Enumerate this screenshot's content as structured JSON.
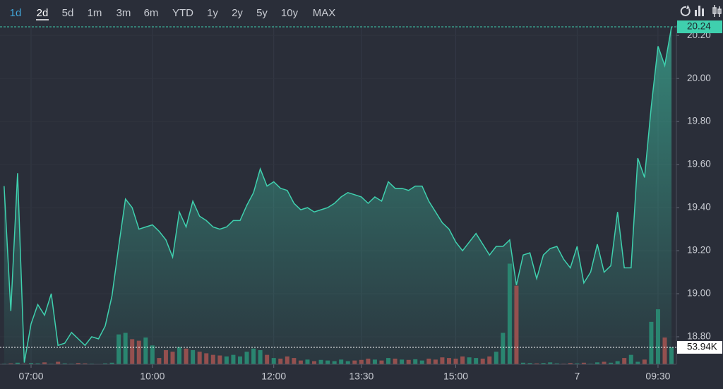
{
  "range_buttons": [
    "1d",
    "2d",
    "5d",
    "1m",
    "3m",
    "6m",
    "YTD",
    "1y",
    "2y",
    "5y",
    "10y",
    "MAX"
  ],
  "chart_data": {
    "type": "line",
    "categories": [
      null,
      null,
      null,
      null,
      "07:00",
      null,
      null,
      null,
      null,
      null,
      null,
      null,
      null,
      null,
      null,
      null,
      null,
      null,
      null,
      null,
      null,
      null,
      "10:00",
      null,
      null,
      null,
      null,
      null,
      null,
      null,
      null,
      null,
      null,
      null,
      null,
      null,
      null,
      null,
      null,
      null,
      "12:00",
      null,
      null,
      null,
      null,
      null,
      null,
      null,
      null,
      null,
      null,
      null,
      null,
      "13:30",
      null,
      null,
      null,
      null,
      null,
      null,
      null,
      null,
      null,
      null,
      null,
      null,
      null,
      "15:00",
      null,
      null,
      null,
      null,
      null,
      null,
      null,
      null,
      null,
      null,
      null,
      null,
      null,
      null,
      null,
      null,
      null,
      "7",
      null,
      null,
      null,
      null,
      null,
      null,
      null,
      null,
      null,
      null,
      null,
      "09:30",
      null,
      null
    ],
    "series": [
      {
        "name": "Price",
        "color": "#3fd0ae",
        "values": [
          19.5,
          18.92,
          19.56,
          18.68,
          18.86,
          18.95,
          18.9,
          19.0,
          18.76,
          18.77,
          18.82,
          18.79,
          18.76,
          18.8,
          18.79,
          18.85,
          18.99,
          19.22,
          19.44,
          19.4,
          19.3,
          19.31,
          19.32,
          19.29,
          19.25,
          19.17,
          19.38,
          19.31,
          19.43,
          19.36,
          19.34,
          19.31,
          19.3,
          19.31,
          19.34,
          19.34,
          19.41,
          19.47,
          19.58,
          19.5,
          19.52,
          19.49,
          19.48,
          19.42,
          19.39,
          19.4,
          19.38,
          19.39,
          19.4,
          19.42,
          19.45,
          19.47,
          19.46,
          19.45,
          19.42,
          19.45,
          19.43,
          19.52,
          19.49,
          19.49,
          19.48,
          19.5,
          19.5,
          19.43,
          19.38,
          19.33,
          19.3,
          19.24,
          19.2,
          19.24,
          19.28,
          19.23,
          19.18,
          19.22,
          19.22,
          19.25,
          19.04,
          19.18,
          19.19,
          19.07,
          19.18,
          19.21,
          19.22,
          19.16,
          19.12,
          19.22,
          19.05,
          19.1,
          19.23,
          19.1,
          19.13,
          19.38,
          19.12,
          19.12,
          19.63,
          19.54,
          19.87,
          20.15,
          20.06,
          20.24
        ]
      },
      {
        "name": "Volume",
        "axis": "y2",
        "up_color": "#2a8570",
        "down_color": "#94504f",
        "values": [
          2000,
          3000,
          5000,
          2000,
          4000,
          3000,
          6000,
          2000,
          8000,
          3000,
          2000,
          4000,
          3000,
          2000,
          1000,
          3000,
          5000,
          95000,
          100000,
          80000,
          75000,
          85000,
          60000,
          20000,
          45000,
          40000,
          55000,
          50000,
          45000,
          40000,
          35000,
          30000,
          28000,
          25000,
          30000,
          25000,
          40000,
          50000,
          45000,
          30000,
          20000,
          18000,
          25000,
          20000,
          12000,
          15000,
          10000,
          14000,
          12000,
          10000,
          15000,
          10000,
          12000,
          14000,
          18000,
          15000,
          12000,
          20000,
          18000,
          15000,
          14000,
          16000,
          12000,
          18000,
          15000,
          22000,
          20000,
          18000,
          25000,
          22000,
          20000,
          18000,
          25000,
          40000,
          100000,
          320000,
          250000,
          5000,
          4000,
          3000,
          4000,
          6000,
          3000,
          2000,
          4000,
          3000,
          5000,
          2000,
          6000,
          8000,
          5000,
          10000,
          20000,
          30000,
          8000,
          15000,
          135000,
          175000,
          85000,
          53940
        ]
      }
    ],
    "ylim": [
      18.672,
      20.25
    ],
    "yticks": [
      {
        "value": 18.8,
        "label": "18.80"
      },
      {
        "value": 19.0,
        "label": "19.00"
      },
      {
        "value": 19.2,
        "label": "19.20"
      },
      {
        "value": 19.4,
        "label": "19.40"
      },
      {
        "value": 19.6,
        "label": "19.60"
      },
      {
        "value": 19.8,
        "label": "19.80"
      },
      {
        "value": 20.0,
        "label": "20.00"
      },
      {
        "value": 20.2,
        "label": "20.20"
      }
    ],
    "y2lim": [
      0,
      1080000
    ],
    "last_price": 20.24,
    "last_volume": {
      "value": 53940,
      "label": "53.94K"
    },
    "grid": true
  }
}
